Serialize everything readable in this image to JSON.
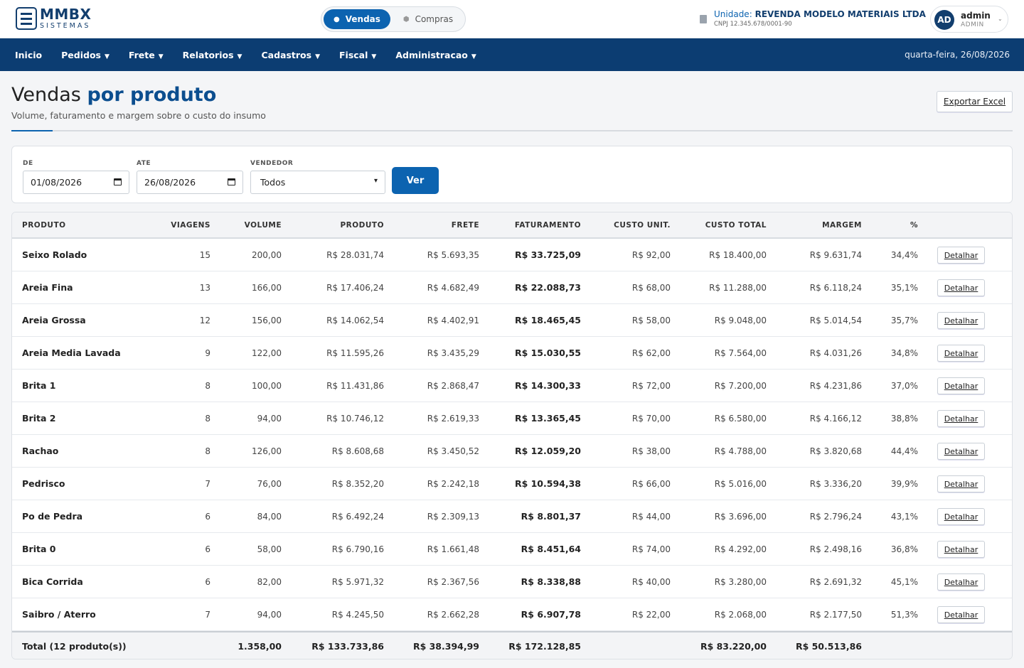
{
  "brand": {
    "title": "MMBX",
    "subtitle": "SISTEMAS"
  },
  "mode": {
    "active": "Vendas",
    "inactive": "Compras"
  },
  "unit": {
    "label": "Unidade:",
    "name": "REVENDA MODELO MATERIAIS LTDA",
    "cnpj": "CNPJ 12.345.678/0001-90"
  },
  "user": {
    "initials": "AD",
    "name": "admin",
    "role": "ADMIN"
  },
  "nav": {
    "items": [
      "Inicio",
      "Pedidos",
      "Frete",
      "Relatorios",
      "Cadastros",
      "Fiscal",
      "Administracao"
    ],
    "date": "quarta-feira, 26/08/2026"
  },
  "page": {
    "title_light": "Vendas",
    "title_bold": "por produto",
    "subtitle": "Volume, faturamento e margem sobre o custo do insumo",
    "export_label": "Exportar Excel"
  },
  "filters": {
    "de_label": "DE",
    "de_value": "01/08/2026",
    "ate_label": "ATE",
    "ate_value": "26/08/2026",
    "vendedor_label": "VENDEDOR",
    "vendedor_value": "Todos",
    "submit_label": "Ver"
  },
  "table": {
    "headers": [
      "PRODUTO",
      "VIAGENS",
      "VOLUME",
      "PRODUTO",
      "FRETE",
      "FATURAMENTO",
      "CUSTO UNIT.",
      "CUSTO TOTAL",
      "MARGEM",
      "%"
    ],
    "action_label": "Detalhar",
    "rows": [
      [
        "Seixo Rolado",
        "15",
        "200,00",
        "R$ 28.031,74",
        "R$ 5.693,35",
        "R$ 33.725,09",
        "R$ 92,00",
        "R$ 18.400,00",
        "R$ 9.631,74",
        "34,4%"
      ],
      [
        "Areia Fina",
        "13",
        "166,00",
        "R$ 17.406,24",
        "R$ 4.682,49",
        "R$ 22.088,73",
        "R$ 68,00",
        "R$ 11.288,00",
        "R$ 6.118,24",
        "35,1%"
      ],
      [
        "Areia Grossa",
        "12",
        "156,00",
        "R$ 14.062,54",
        "R$ 4.402,91",
        "R$ 18.465,45",
        "R$ 58,00",
        "R$ 9.048,00",
        "R$ 5.014,54",
        "35,7%"
      ],
      [
        "Areia Media Lavada",
        "9",
        "122,00",
        "R$ 11.595,26",
        "R$ 3.435,29",
        "R$ 15.030,55",
        "R$ 62,00",
        "R$ 7.564,00",
        "R$ 4.031,26",
        "34,8%"
      ],
      [
        "Brita 1",
        "8",
        "100,00",
        "R$ 11.431,86",
        "R$ 2.868,47",
        "R$ 14.300,33",
        "R$ 72,00",
        "R$ 7.200,00",
        "R$ 4.231,86",
        "37,0%"
      ],
      [
        "Brita 2",
        "8",
        "94,00",
        "R$ 10.746,12",
        "R$ 2.619,33",
        "R$ 13.365,45",
        "R$ 70,00",
        "R$ 6.580,00",
        "R$ 4.166,12",
        "38,8%"
      ],
      [
        "Rachao",
        "8",
        "126,00",
        "R$ 8.608,68",
        "R$ 3.450,52",
        "R$ 12.059,20",
        "R$ 38,00",
        "R$ 4.788,00",
        "R$ 3.820,68",
        "44,4%"
      ],
      [
        "Pedrisco",
        "7",
        "76,00",
        "R$ 8.352,20",
        "R$ 2.242,18",
        "R$ 10.594,38",
        "R$ 66,00",
        "R$ 5.016,00",
        "R$ 3.336,20",
        "39,9%"
      ],
      [
        "Po de Pedra",
        "6",
        "84,00",
        "R$ 6.492,24",
        "R$ 2.309,13",
        "R$ 8.801,37",
        "R$ 44,00",
        "R$ 3.696,00",
        "R$ 2.796,24",
        "43,1%"
      ],
      [
        "Brita 0",
        "6",
        "58,00",
        "R$ 6.790,16",
        "R$ 1.661,48",
        "R$ 8.451,64",
        "R$ 74,00",
        "R$ 4.292,00",
        "R$ 2.498,16",
        "36,8%"
      ],
      [
        "Bica Corrida",
        "6",
        "82,00",
        "R$ 5.971,32",
        "R$ 2.367,56",
        "R$ 8.338,88",
        "R$ 40,00",
        "R$ 3.280,00",
        "R$ 2.691,32",
        "45,1%"
      ],
      [
        "Saibro / Aterro",
        "7",
        "94,00",
        "R$ 4.245,50",
        "R$ 2.662,28",
        "R$ 6.907,78",
        "R$ 22,00",
        "R$ 2.068,00",
        "R$ 2.177,50",
        "51,3%"
      ]
    ],
    "total": {
      "label": "Total (12 produto(s))",
      "volume": "1.358,00",
      "produto": "R$ 133.733,86",
      "frete": "R$ 38.394,99",
      "faturamento": "R$ 172.128,85",
      "custo_total": "R$ 83.220,00",
      "margem": "R$ 50.513,86"
    }
  }
}
